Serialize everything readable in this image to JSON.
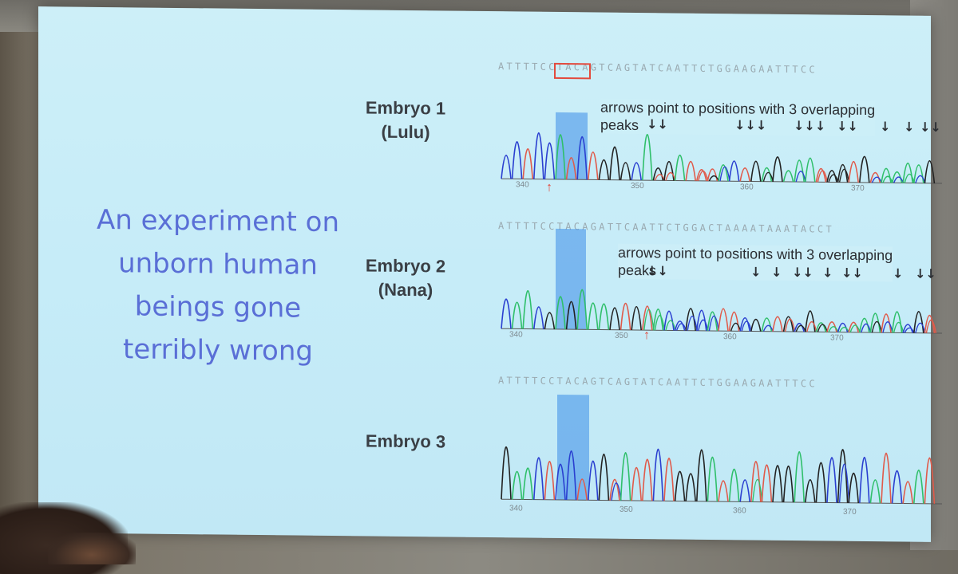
{
  "slide": {
    "headline": [
      "An experiment on",
      "unborn human",
      "beings gone",
      "terribly wrong"
    ],
    "embryos": [
      {
        "label": [
          "Embryo 1",
          "(Lulu)"
        ],
        "bases": "ATTTTCCTACAGTCAGTATCAATTCTGGAAGAATTTCC",
        "annotation": [
          "arrows point to positions with 3 overlapping",
          "peaks"
        ],
        "arrow_groups": [
          "↓↓",
          "↓↓↓",
          "↓↓↓",
          "↓↓",
          "↓",
          "↓",
          "↓↓"
        ],
        "ticks": [
          "340",
          "350",
          "360",
          "370"
        ]
      },
      {
        "label": [
          "Embryo 2",
          "(Nana)"
        ],
        "bases": "ATTTTCCTACAGATTCAATTCTGGACTAAAATAAATACCT",
        "annotation": [
          "arrows point to positions with 3 overlapping",
          "peaks"
        ],
        "arrow_groups": [
          "↓↓",
          "↓",
          "↓",
          "↓↓",
          "↓",
          "↓↓",
          "↓",
          "↓↓"
        ],
        "ticks": [
          "340",
          "350",
          "360",
          "370"
        ]
      },
      {
        "label": [
          "Embryo 3"
        ],
        "bases": "ATTTTCCTACAGTCAGTATCAATTCTGGAAGAATTTCC",
        "ticks": [
          "340",
          "350",
          "360",
          "370"
        ]
      }
    ]
  },
  "colors": {
    "slide_bg": "#c6ecf8",
    "headline": "#5a6fd6",
    "highlight": "#3a8de8",
    "peak_A": "#2fbf6a",
    "peak_C": "#2a3fd0",
    "peak_G": "#222222",
    "peak_T": "#e05a4a",
    "marker": "#e34a3e"
  }
}
